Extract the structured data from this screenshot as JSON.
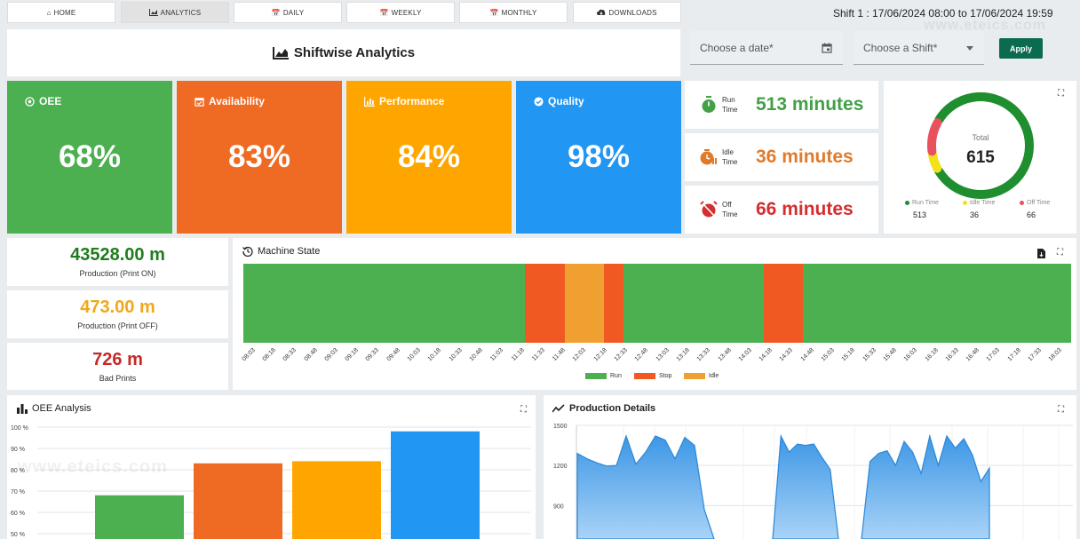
{
  "nav": {
    "tabs": [
      {
        "label": "HOME",
        "icon": "home-icon"
      },
      {
        "label": "ANALYTICS",
        "icon": "area-chart-icon"
      },
      {
        "label": "DAILY",
        "icon": "calendar-icon"
      },
      {
        "label": "WEEKLY",
        "icon": "calendar-icon"
      },
      {
        "label": "MONTHLY",
        "icon": "calendar-icon"
      },
      {
        "label": "DOWNLOADS",
        "icon": "cloud-download-icon"
      }
    ],
    "active_tab": "ANALYTICS"
  },
  "shift_info": "Shift 1 : 17/06/2024 08:00 to 17/06/2024 19:59",
  "header": {
    "title": "Shiftwise Analytics"
  },
  "filters": {
    "date_placeholder": "Choose a date*",
    "shift_placeholder": "Choose a Shift*",
    "apply_label": "Apply"
  },
  "kpis": [
    {
      "label": "OEE",
      "value": "68%",
      "color": "#4caf50",
      "icon": "target-icon"
    },
    {
      "label": "Availability",
      "value": "83%",
      "color": "#ef6a22",
      "icon": "calendar-check-icon"
    },
    {
      "label": "Performance",
      "value": "84%",
      "color": "#ffa500",
      "icon": "bar-chart-icon"
    },
    {
      "label": "Quality",
      "value": "98%",
      "color": "#2196f3",
      "icon": "check-circle-icon"
    }
  ],
  "times": [
    {
      "label": "Run Time",
      "l1": "Run",
      "l2": "Time",
      "value": "513 minutes",
      "color": "#43a047",
      "icon": "stopwatch-icon"
    },
    {
      "label": "Idle Time",
      "l1": "Idle",
      "l2": "Time",
      "value": "36 minutes",
      "color": "#e07b2c",
      "icon": "idle-clock-icon"
    },
    {
      "label": "Off Time",
      "l1": "Off",
      "l2": "Time",
      "value": "66 minutes",
      "color": "#d32f2f",
      "icon": "alarm-off-icon"
    }
  ],
  "donut": {
    "total_label": "Total",
    "total_value": "615",
    "items": [
      {
        "label": "Run Time",
        "value": 513,
        "display": "513",
        "color": "#1e8e2e"
      },
      {
        "label": "Idle Time",
        "value": 36,
        "display": "36",
        "color": "#f2e21b"
      },
      {
        "label": "Off Time",
        "value": 66,
        "display": "66",
        "color": "#e8515e"
      }
    ]
  },
  "production": [
    {
      "value": "43528.00 m",
      "label": "Production (Print ON)",
      "color": "#1e7d1e"
    },
    {
      "value": "473.00 m",
      "label": "Production (Print OFF)",
      "color": "#f0a81a"
    },
    {
      "value": "726 m",
      "label": "Bad Prints",
      "color": "#c62828"
    }
  ],
  "machine_state": {
    "title": "Machine State",
    "ticks": [
      "08:03",
      "08:18",
      "08:33",
      "08:48",
      "09:03",
      "09:18",
      "09:33",
      "09:48",
      "10:03",
      "10:18",
      "10:33",
      "10:48",
      "11:03",
      "11:18",
      "11:33",
      "11:48",
      "12:03",
      "12:18",
      "12:33",
      "12:48",
      "13:03",
      "13:18",
      "13:33",
      "13:48",
      "14:03",
      "14:18",
      "14:33",
      "14:48",
      "15:03",
      "15:18",
      "15:33",
      "15:48",
      "16:03",
      "16:18",
      "16:33",
      "16:48",
      "17:03",
      "17:18",
      "17:33",
      "18:03"
    ],
    "legend": [
      {
        "label": "Run",
        "color": "#4caf50"
      },
      {
        "label": "Stop",
        "color": "#f05a22"
      },
      {
        "label": "Idle",
        "color": "#f0a030"
      }
    ],
    "segments": [
      {
        "state": "Run",
        "from": 0,
        "to": 14.3
      },
      {
        "state": "Stop",
        "from": 14.3,
        "to": 16.3
      },
      {
        "state": "Idle",
        "from": 16.3,
        "to": 18.3
      },
      {
        "state": "Stop",
        "from": 18.3,
        "to": 19.3
      },
      {
        "state": "Run",
        "from": 19.3,
        "to": 26.4
      },
      {
        "state": "Stop",
        "from": 26.4,
        "to": 28.4
      },
      {
        "state": "Run",
        "from": 28.4,
        "to": 42
      }
    ],
    "span": 42
  },
  "oee_analysis": {
    "title": "OEE Analysis",
    "chart_data": {
      "type": "bar",
      "categories": [
        "OEE",
        "Availability",
        "Performance",
        "Quality"
      ],
      "values": [
        68,
        83,
        84,
        98
      ],
      "colors": [
        "#4caf50",
        "#ef6a22",
        "#ffa500",
        "#2196f3"
      ],
      "yticks": [
        "100 %",
        "90 %",
        "80 %",
        "70 %",
        "60 %",
        "50 %"
      ],
      "ylim": [
        50,
        100
      ]
    }
  },
  "production_details": {
    "title": "Production Details",
    "chart_data": {
      "type": "area",
      "yticks": [
        "1500",
        "1200",
        "900"
      ],
      "ylim": [
        650,
        1500
      ],
      "segments": [
        [
          1290,
          1250,
          1220,
          1195,
          1200,
          1420,
          1210,
          1300,
          1420,
          1390,
          1250,
          1410,
          1350,
          870,
          650
        ],
        [
          650,
          1420,
          1300,
          1360,
          1350,
          1360,
          1260,
          1170,
          650
        ],
        [
          650,
          1230,
          1290,
          1310,
          1200,
          1380,
          1300,
          1140,
          1420,
          1200,
          1420,
          1330,
          1400,
          1280,
          1080,
          1180
        ]
      ]
    }
  },
  "watermark": "www.eteics.com"
}
